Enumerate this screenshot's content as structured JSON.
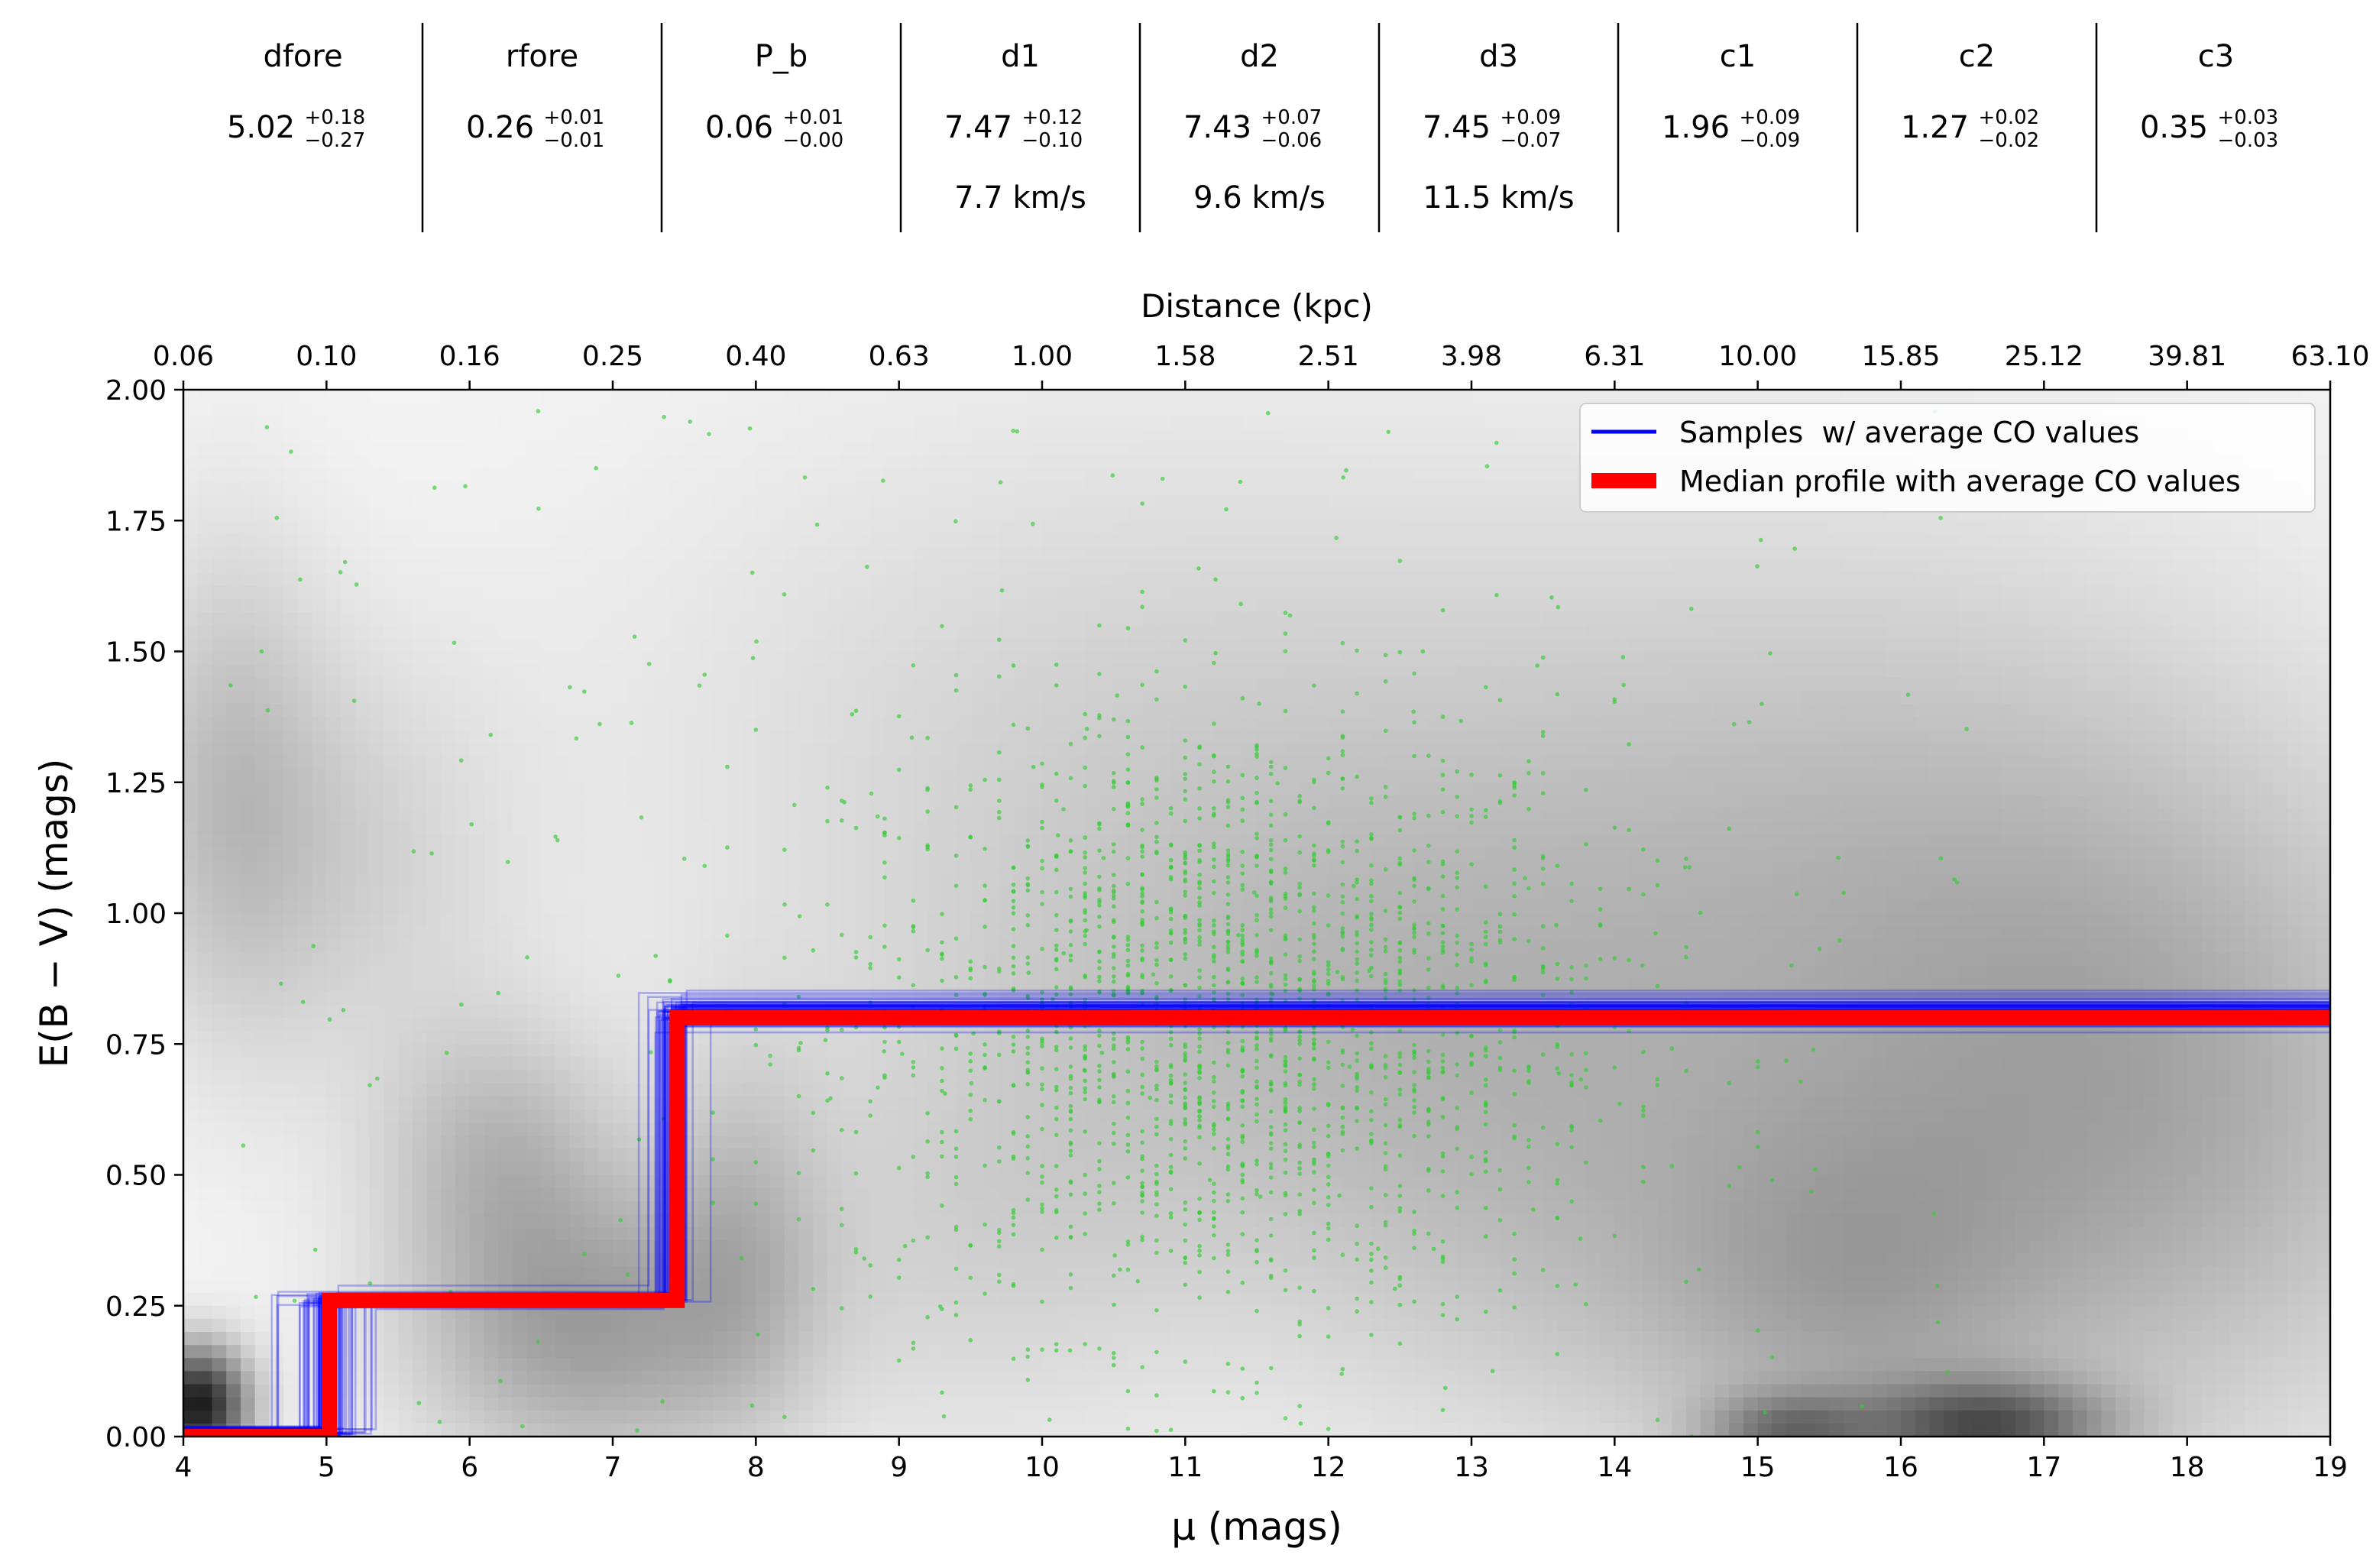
{
  "table": {
    "headers": [
      "dfore",
      "rfore",
      "P_b",
      "d1",
      "d2",
      "d3",
      "c1",
      "c2",
      "c3"
    ],
    "values": [
      {
        "base": "5.02",
        "up": "+0.18",
        "down": "−0.27"
      },
      {
        "base": "0.26",
        "up": "+0.01",
        "down": "−0.01"
      },
      {
        "base": "0.06",
        "up": "+0.01",
        "down": "−0.00"
      },
      {
        "base": "7.47",
        "up": "+0.12",
        "down": "−0.10"
      },
      {
        "base": "7.43",
        "up": "+0.07",
        "down": "−0.06"
      },
      {
        "base": "7.45",
        "up": "+0.09",
        "down": "−0.07"
      },
      {
        "base": "1.96",
        "up": "+0.09",
        "down": "−0.09"
      },
      {
        "base": "1.27",
        "up": "+0.02",
        "down": "−0.02"
      },
      {
        "base": "0.35",
        "up": "+0.03",
        "down": "−0.03"
      }
    ],
    "velocities": [
      "",
      "",
      "",
      "7.7 km/s",
      "9.6 km/s",
      "11.5 km/s",
      "",
      "",
      ""
    ]
  },
  "chart_data": {
    "type": "line",
    "title": "",
    "xlabel": "μ (mags)",
    "ylabel": "E(B − V) (mags)",
    "top_xlabel": "Distance (kpc)",
    "xlim": [
      4,
      19
    ],
    "ylim": [
      0,
      2
    ],
    "xticks": [
      4,
      5,
      6,
      7,
      8,
      9,
      10,
      11,
      12,
      13,
      14,
      15,
      16,
      17,
      18,
      19
    ],
    "yticks": [
      "0.00",
      "0.25",
      "0.50",
      "0.75",
      "1.00",
      "1.25",
      "1.50",
      "1.75",
      "2.00"
    ],
    "top_ticks": [
      "0.06",
      "0.10",
      "0.16",
      "0.25",
      "0.40",
      "0.63",
      "1.00",
      "1.58",
      "2.51",
      "3.98",
      "6.31",
      "10.00",
      "15.85",
      "25.12",
      "39.81",
      "63.10"
    ],
    "grid": false,
    "legend_position": "top-right",
    "colors": {
      "samples": "#0000ff",
      "median": "#ff0000",
      "stars": "#33cc33",
      "background": "#7f7f7f"
    },
    "series": [
      {
        "name": "Samples  w/ average CO values",
        "profile": [
          [
            4,
            0.01
          ],
          [
            5.0,
            0.01
          ],
          [
            5.0,
            0.26
          ],
          [
            7.42,
            0.26
          ],
          [
            7.42,
            0.81
          ],
          [
            19,
            0.81
          ]
        ]
      },
      {
        "name": "Median profile with average CO values",
        "profile": [
          [
            4,
            0.0
          ],
          [
            5.02,
            0.0
          ],
          [
            5.02,
            0.26
          ],
          [
            7.45,
            0.26
          ],
          [
            7.45,
            0.8
          ],
          [
            19,
            0.8
          ]
        ]
      }
    ],
    "stars": {
      "x_range": [
        4.3,
        16.5
      ],
      "y_range": [
        0,
        1.96
      ],
      "center": [
        11.3,
        0.8
      ],
      "count": 2200
    }
  }
}
